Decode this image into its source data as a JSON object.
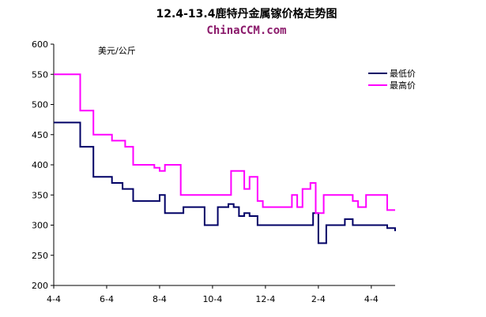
{
  "chart_data": {
    "type": "line",
    "title": "12.4-13.4鹿特丹金属镓价格走势图",
    "subtitle": "ChinaCCM.com",
    "unit_label": "美元/公斤",
    "ylim": [
      200,
      600
    ],
    "y_ticks": [
      200,
      250,
      300,
      350,
      400,
      450,
      500,
      550,
      600
    ],
    "x_ticks": [
      "4-4",
      "6-4",
      "8-4",
      "10-4",
      "12-4",
      "2-4",
      "4-4"
    ],
    "grid": false,
    "legend_placement": "right",
    "series": [
      {
        "name": "最低价",
        "color": "#000066",
        "points": [
          [
            0,
            470
          ],
          [
            1,
            470
          ],
          [
            1,
            430
          ],
          [
            1.5,
            430
          ],
          [
            1.5,
            380
          ],
          [
            2.2,
            380
          ],
          [
            2.2,
            370
          ],
          [
            2.6,
            370
          ],
          [
            2.6,
            360
          ],
          [
            3.0,
            360
          ],
          [
            3.0,
            340
          ],
          [
            4.0,
            340
          ],
          [
            4.0,
            350
          ],
          [
            4.2,
            350
          ],
          [
            4.2,
            320
          ],
          [
            4.9,
            320
          ],
          [
            4.9,
            330
          ],
          [
            5.7,
            330
          ],
          [
            5.7,
            300
          ],
          [
            6.2,
            300
          ],
          [
            6.2,
            330
          ],
          [
            6.6,
            330
          ],
          [
            6.6,
            335
          ],
          [
            6.8,
            335
          ],
          [
            6.8,
            330
          ],
          [
            7.0,
            330
          ],
          [
            7.0,
            315
          ],
          [
            7.2,
            315
          ],
          [
            7.2,
            320
          ],
          [
            7.4,
            320
          ],
          [
            7.4,
            315
          ],
          [
            7.7,
            315
          ],
          [
            7.7,
            300
          ],
          [
            9.8,
            300
          ],
          [
            9.8,
            320
          ],
          [
            10.0,
            320
          ],
          [
            10.0,
            270
          ],
          [
            10.3,
            270
          ],
          [
            10.3,
            300
          ],
          [
            11.0,
            300
          ],
          [
            11.0,
            310
          ],
          [
            11.3,
            310
          ],
          [
            11.3,
            300
          ],
          [
            12.6,
            300
          ],
          [
            12.6,
            295
          ],
          [
            12.9,
            295
          ],
          [
            12.9,
            290
          ]
        ]
      },
      {
        "name": "最高价",
        "color": "#ff00ff",
        "points": [
          [
            0,
            550
          ],
          [
            1,
            550
          ],
          [
            1,
            490
          ],
          [
            1.5,
            490
          ],
          [
            1.5,
            450
          ],
          [
            2.2,
            450
          ],
          [
            2.2,
            440
          ],
          [
            2.7,
            440
          ],
          [
            2.7,
            430
          ],
          [
            3.0,
            430
          ],
          [
            3.0,
            400
          ],
          [
            3.8,
            400
          ],
          [
            3.8,
            395
          ],
          [
            4.0,
            395
          ],
          [
            4.0,
            390
          ],
          [
            4.2,
            390
          ],
          [
            4.2,
            400
          ],
          [
            4.8,
            400
          ],
          [
            4.8,
            350
          ],
          [
            6.7,
            350
          ],
          [
            6.7,
            390
          ],
          [
            7.2,
            390
          ],
          [
            7.2,
            360
          ],
          [
            7.4,
            360
          ],
          [
            7.4,
            380
          ],
          [
            7.7,
            380
          ],
          [
            7.7,
            340
          ],
          [
            7.9,
            340
          ],
          [
            7.9,
            330
          ],
          [
            9.0,
            330
          ],
          [
            9.0,
            350
          ],
          [
            9.2,
            350
          ],
          [
            9.2,
            330
          ],
          [
            9.4,
            330
          ],
          [
            9.4,
            360
          ],
          [
            9.7,
            360
          ],
          [
            9.7,
            370
          ],
          [
            9.9,
            370
          ],
          [
            9.9,
            320
          ],
          [
            10.2,
            320
          ],
          [
            10.2,
            350
          ],
          [
            11.3,
            350
          ],
          [
            11.3,
            340
          ],
          [
            11.5,
            340
          ],
          [
            11.5,
            330
          ],
          [
            11.8,
            330
          ],
          [
            11.8,
            350
          ],
          [
            12.6,
            350
          ],
          [
            12.6,
            325
          ],
          [
            12.9,
            325
          ]
        ]
      }
    ]
  }
}
